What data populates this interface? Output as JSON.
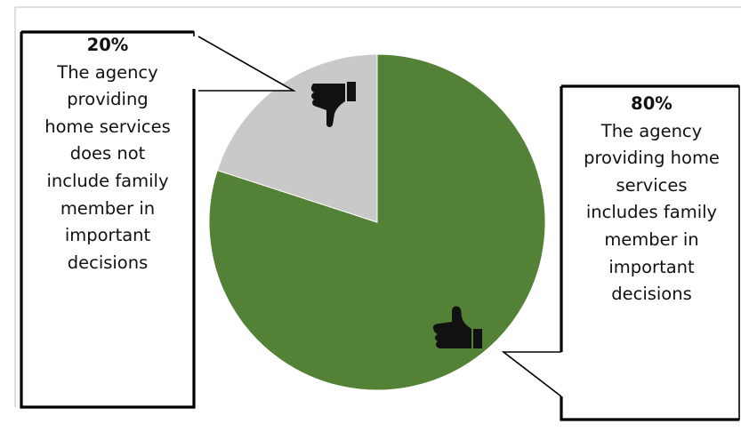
{
  "chart_data": {
    "type": "pie",
    "slices": [
      {
        "label": "The agency providing home services includes family member in important decisions",
        "value": 80,
        "percent_label": "80%",
        "color": "#538135",
        "icon": "thumbs-up-icon"
      },
      {
        "label": "The agency providing home services does not include family member in important decisions",
        "value": 20,
        "percent_label": "20%",
        "color": "#c9c9c9",
        "icon": "thumbs-down-icon"
      }
    ],
    "start_angle_deg": 0,
    "direction": "clockwise",
    "data_labels": "callouts"
  },
  "callouts": {
    "left": {
      "percent": "20%",
      "lines": [
        "The agency",
        "providing",
        "home services",
        "does not",
        "include family",
        "member in",
        "important",
        "decisions"
      ]
    },
    "right": {
      "percent": "80%",
      "lines": [
        "The agency",
        "providing home",
        "services",
        "includes family",
        "member in",
        "important",
        "decisions"
      ]
    }
  }
}
